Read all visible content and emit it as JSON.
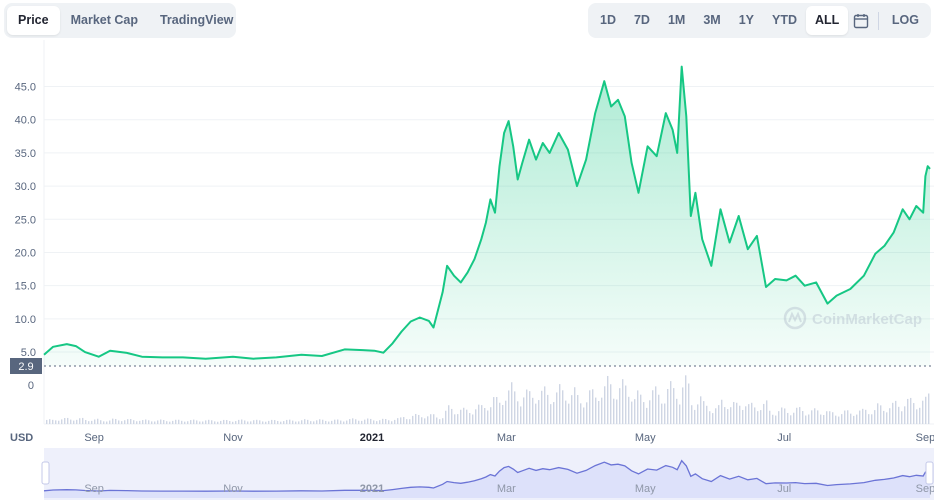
{
  "tabs": [
    {
      "label": "Price",
      "active": true
    },
    {
      "label": "Market Cap",
      "active": false
    },
    {
      "label": "TradingView",
      "active": false
    }
  ],
  "ranges": [
    {
      "label": "1D",
      "active": false
    },
    {
      "label": "7D",
      "active": false
    },
    {
      "label": "1M",
      "active": false
    },
    {
      "label": "3M",
      "active": false
    },
    {
      "label": "1Y",
      "active": false
    },
    {
      "label": "YTD",
      "active": false
    },
    {
      "label": "ALL",
      "active": true
    }
  ],
  "log_label": "LOG",
  "calendar_icon": "calendar-icon",
  "watermark": "CoinMarketCap",
  "currency_label": "USD",
  "current_price_label": "2.9",
  "volume_zero_label": "0",
  "colors": {
    "line": "#16c784",
    "fill": "#16c784",
    "volume": "#cfd6e4",
    "navigator_line": "#6b74d6",
    "navigator_fill": "#e4e7fb",
    "accent": "#222531"
  },
  "chart_data": {
    "type": "area",
    "ylim": [
      2.9,
      49
    ],
    "yticks": [
      5.0,
      10.0,
      15.0,
      20.0,
      25.0,
      30.0,
      35.0,
      40.0,
      45.0
    ],
    "ytick_labels": [
      "5.0",
      "10.0",
      "15.0",
      "20.0",
      "25.0",
      "30.0",
      "35.0",
      "40.0",
      "45.0"
    ],
    "xticks": [
      {
        "label": "Sep",
        "x": "2020-09-01",
        "bold": false
      },
      {
        "label": "Nov",
        "x": "2020-11-01",
        "bold": false
      },
      {
        "label": "2021",
        "x": "2021-01-01",
        "bold": true
      },
      {
        "label": "Mar",
        "x": "2021-03-01",
        "bold": false
      },
      {
        "label": "May",
        "x": "2021-05-01",
        "bold": false
      },
      {
        "label": "Jul",
        "x": "2021-07-01",
        "bold": false
      },
      {
        "label": "Sep",
        "x": "2021-09-01",
        "bold": false
      }
    ],
    "xlim": [
      "2020-08-10",
      "2021-09-03"
    ],
    "series": [
      {
        "points": [
          [
            "2020-08-10",
            4.6
          ],
          [
            "2020-08-14",
            5.8
          ],
          [
            "2020-08-20",
            6.2
          ],
          [
            "2020-08-24",
            5.9
          ],
          [
            "2020-08-28",
            5.0
          ],
          [
            "2020-09-03",
            4.3
          ],
          [
            "2020-09-08",
            5.2
          ],
          [
            "2020-09-15",
            4.9
          ],
          [
            "2020-09-22",
            4.3
          ],
          [
            "2020-10-01",
            4.2
          ],
          [
            "2020-10-10",
            4.2
          ],
          [
            "2020-10-20",
            4.0
          ],
          [
            "2020-11-01",
            4.3
          ],
          [
            "2020-11-10",
            4.0
          ],
          [
            "2020-11-20",
            4.2
          ],
          [
            "2020-12-01",
            4.6
          ],
          [
            "2020-12-10",
            4.4
          ],
          [
            "2020-12-20",
            5.4
          ],
          [
            "2020-12-28",
            5.3
          ],
          [
            "2021-01-02",
            5.2
          ],
          [
            "2021-01-06",
            4.9
          ],
          [
            "2021-01-10",
            6.3
          ],
          [
            "2021-01-14",
            8.1
          ],
          [
            "2021-01-18",
            9.6
          ],
          [
            "2021-01-22",
            10.2
          ],
          [
            "2021-01-26",
            9.7
          ],
          [
            "2021-01-28",
            8.7
          ],
          [
            "2021-02-01",
            14.0
          ],
          [
            "2021-02-03",
            18.0
          ],
          [
            "2021-02-06",
            16.5
          ],
          [
            "2021-02-09",
            15.5
          ],
          [
            "2021-02-12",
            17.0
          ],
          [
            "2021-02-15",
            19.0
          ],
          [
            "2021-02-18",
            22.0
          ],
          [
            "2021-02-20",
            24.5
          ],
          [
            "2021-02-22",
            28.0
          ],
          [
            "2021-02-24",
            26.0
          ],
          [
            "2021-02-26",
            33.0
          ],
          [
            "2021-02-28",
            38.0
          ],
          [
            "2021-03-02",
            39.8
          ],
          [
            "2021-03-04",
            36.0
          ],
          [
            "2021-03-06",
            31.0
          ],
          [
            "2021-03-08",
            33.5
          ],
          [
            "2021-03-11",
            37.0
          ],
          [
            "2021-03-14",
            34.0
          ],
          [
            "2021-03-17",
            36.5
          ],
          [
            "2021-03-20",
            35.0
          ],
          [
            "2021-03-24",
            38.0
          ],
          [
            "2021-03-28",
            35.5
          ],
          [
            "2021-04-01",
            30.0
          ],
          [
            "2021-04-05",
            34.0
          ],
          [
            "2021-04-09",
            41.0
          ],
          [
            "2021-04-13",
            45.8
          ],
          [
            "2021-04-16",
            42.0
          ],
          [
            "2021-04-19",
            43.0
          ],
          [
            "2021-04-22",
            40.5
          ],
          [
            "2021-04-25",
            33.5
          ],
          [
            "2021-04-28",
            29.0
          ],
          [
            "2021-05-02",
            36.0
          ],
          [
            "2021-05-06",
            34.5
          ],
          [
            "2021-05-10",
            41.0
          ],
          [
            "2021-05-13",
            38.5
          ],
          [
            "2021-05-15",
            35.0
          ],
          [
            "2021-05-17",
            48.0
          ],
          [
            "2021-05-19",
            40.5
          ],
          [
            "2021-05-21",
            25.5
          ],
          [
            "2021-05-23",
            29.0
          ],
          [
            "2021-05-26",
            22.0
          ],
          [
            "2021-05-30",
            18.0
          ],
          [
            "2021-06-03",
            26.5
          ],
          [
            "2021-06-07",
            21.5
          ],
          [
            "2021-06-11",
            25.5
          ],
          [
            "2021-06-15",
            20.5
          ],
          [
            "2021-06-19",
            22.5
          ],
          [
            "2021-06-23",
            14.8
          ],
          [
            "2021-06-27",
            16.0
          ],
          [
            "2021-07-02",
            15.8
          ],
          [
            "2021-07-06",
            16.5
          ],
          [
            "2021-07-10",
            15.0
          ],
          [
            "2021-07-15",
            15.5
          ],
          [
            "2021-07-20",
            12.3
          ],
          [
            "2021-07-24",
            13.5
          ],
          [
            "2021-07-30",
            14.5
          ],
          [
            "2021-08-05",
            16.5
          ],
          [
            "2021-08-10",
            19.8
          ],
          [
            "2021-08-14",
            21.0
          ],
          [
            "2021-08-18",
            23.0
          ],
          [
            "2021-08-22",
            26.5
          ],
          [
            "2021-08-25",
            25.0
          ],
          [
            "2021-08-28",
            27.0
          ],
          [
            "2021-08-31",
            26.0
          ],
          [
            "2021-09-01",
            31.5
          ],
          [
            "2021-09-02",
            33.0
          ],
          [
            "2021-09-03",
            32.6
          ]
        ]
      }
    ]
  }
}
